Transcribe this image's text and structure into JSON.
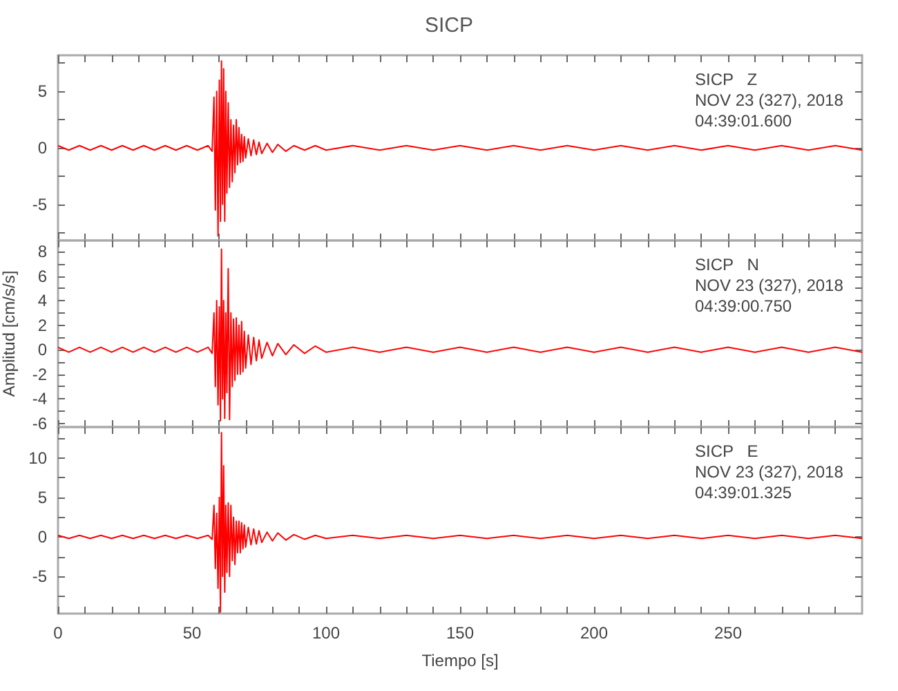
{
  "chart_data": [
    {
      "type": "line",
      "title": "SICP",
      "annotations": [
        "SICP   Z\nNOV 23 (327), 2018\n04:39:01.600"
      ],
      "tick_labels": "y",
      "grid": false,
      "xlim": [
        0,
        300
      ],
      "xticks": [
        0,
        {
          "value": 10,
          "label": null
        },
        {
          "value": 20,
          "label": null
        },
        {
          "value": 30,
          "label": null
        },
        {
          "value": 40,
          "label": null
        },
        50,
        {
          "value": 60,
          "label": null
        },
        {
          "value": 70,
          "label": null
        },
        {
          "value": 80,
          "label": null
        },
        {
          "value": 90,
          "label": null
        },
        100,
        {
          "value": 110,
          "label": null
        },
        {
          "value": 120,
          "label": null
        },
        {
          "value": 130,
          "label": null
        },
        {
          "value": 140,
          "label": null
        },
        150,
        {
          "value": 160,
          "label": null
        },
        {
          "value": 170,
          "label": null
        },
        {
          "value": 180,
          "label": null
        },
        {
          "value": 190,
          "label": null
        },
        200,
        {
          "value": 210,
          "label": null
        },
        {
          "value": 220,
          "label": null
        },
        {
          "value": 230,
          "label": null
        },
        {
          "value": 240,
          "label": null
        },
        250,
        {
          "value": 260,
          "label": null
        },
        {
          "value": 270,
          "label": null
        },
        {
          "value": 280,
          "label": null
        },
        {
          "value": 290,
          "label": null
        }
      ],
      "ylim": [
        -8.2,
        8.2
      ],
      "yticks": [
        {
          "value": -7.5,
          "label": null
        },
        -5,
        {
          "value": -2.5,
          "label": null
        },
        0,
        {
          "value": 2.5,
          "label": null
        },
        5,
        {
          "value": 7.5,
          "label": null
        }
      ],
      "x": [
        0,
        4,
        8,
        12,
        16,
        20,
        24,
        28,
        32,
        36,
        40,
        44,
        48,
        52,
        56,
        57.5,
        58.2,
        58.7,
        59.2,
        59.7,
        60.2,
        60.6,
        61,
        61.4,
        61.8,
        62.2,
        62.6,
        63,
        63.5,
        64,
        64.5,
        65,
        65.5,
        66,
        66.5,
        67,
        67.5,
        68,
        68.5,
        69,
        69.5,
        70,
        71,
        72,
        73,
        74,
        75,
        76,
        78,
        80,
        82,
        85,
        88,
        92,
        96,
        100,
        110,
        120,
        130,
        140,
        150,
        160,
        170,
        180,
        190,
        200,
        210,
        220,
        230,
        240,
        250,
        260,
        270,
        280,
        290,
        300
      ],
      "series": [
        {
          "color": "#ff0000",
          "values": [
            0.2,
            -0.2,
            0.2,
            -0.2,
            0.2,
            -0.2,
            0.2,
            -0.2,
            0.2,
            -0.2,
            0.2,
            -0.2,
            0.2,
            -0.2,
            0.2,
            -0.3,
            4.5,
            -5.5,
            5,
            -7.8,
            6,
            -6.5,
            7.7,
            -5,
            7,
            -6.5,
            5,
            -4,
            4,
            -3.5,
            2.5,
            -3,
            2,
            -2.2,
            2.5,
            -1.5,
            1.8,
            -1.3,
            1.2,
            -1.2,
            1,
            -0.9,
            0.8,
            -0.7,
            0.7,
            -0.6,
            0.5,
            -0.5,
            0.4,
            -0.4,
            0.3,
            -0.3,
            0.2,
            -0.2,
            0.2,
            -0.2,
            0.2,
            -0.2,
            0.2,
            -0.2,
            0.2,
            -0.2,
            0.2,
            -0.2,
            0.2,
            -0.2,
            0.2,
            -0.2,
            0.2,
            -0.2,
            0.2,
            -0.2,
            0.2,
            -0.2,
            0.2,
            -0.2
          ]
        }
      ]
    },
    {
      "type": "line",
      "ylabel": "Amplitud [cm/s/s]",
      "annotations": [
        "SICP   N\nNOV 23 (327), 2018\n04:39:00.750"
      ],
      "tick_labels": "y",
      "grid": false,
      "xlim": [
        0,
        300
      ],
      "xticks": [
        0,
        {
          "value": 10,
          "label": null
        },
        {
          "value": 20,
          "label": null
        },
        {
          "value": 30,
          "label": null
        },
        {
          "value": 40,
          "label": null
        },
        50,
        {
          "value": 60,
          "label": null
        },
        {
          "value": 70,
          "label": null
        },
        {
          "value": 80,
          "label": null
        },
        {
          "value": 90,
          "label": null
        },
        100,
        {
          "value": 110,
          "label": null
        },
        {
          "value": 120,
          "label": null
        },
        {
          "value": 130,
          "label": null
        },
        {
          "value": 140,
          "label": null
        },
        150,
        {
          "value": 160,
          "label": null
        },
        {
          "value": 170,
          "label": null
        },
        {
          "value": 180,
          "label": null
        },
        {
          "value": 190,
          "label": null
        },
        200,
        {
          "value": 210,
          "label": null
        },
        {
          "value": 220,
          "label": null
        },
        {
          "value": 230,
          "label": null
        },
        {
          "value": 240,
          "label": null
        },
        250,
        {
          "value": 260,
          "label": null
        },
        {
          "value": 270,
          "label": null
        },
        {
          "value": 280,
          "label": null
        },
        {
          "value": 290,
          "label": null
        }
      ],
      "ylim": [
        -6.3,
        8.9
      ],
      "yticks": [
        -6,
        {
          "value": -5,
          "label": null
        },
        -4,
        {
          "value": -3,
          "label": null
        },
        -2,
        {
          "value": -1,
          "label": null
        },
        0,
        {
          "value": 1,
          "label": null
        },
        2,
        {
          "value": 3,
          "label": null
        },
        4,
        {
          "value": 5,
          "label": null
        },
        6,
        {
          "value": 7,
          "label": null
        },
        8
      ],
      "x": [
        0,
        4,
        8,
        12,
        16,
        20,
        24,
        28,
        32,
        36,
        40,
        44,
        48,
        52,
        56,
        57.5,
        58.2,
        58.7,
        59.2,
        59.7,
        60.2,
        60.6,
        61,
        61.4,
        61.8,
        62.2,
        62.6,
        63,
        63.5,
        64,
        64.5,
        65,
        65.5,
        66,
        66.5,
        67,
        67.5,
        68,
        68.5,
        69,
        69.5,
        70,
        71,
        72,
        73,
        74,
        75,
        76,
        78,
        80,
        82,
        85,
        88,
        92,
        96,
        100,
        110,
        120,
        130,
        140,
        150,
        160,
        170,
        180,
        190,
        200,
        210,
        220,
        230,
        240,
        250,
        260,
        270,
        280,
        290,
        300
      ],
      "series": [
        {
          "color": "#ff0000",
          "values": [
            0.2,
            -0.2,
            0.2,
            -0.2,
            0.2,
            -0.2,
            0.2,
            -0.2,
            0.2,
            -0.2,
            0.2,
            -0.2,
            0.2,
            -0.2,
            0.2,
            -0.3,
            3,
            -3,
            4,
            -4.5,
            3.5,
            -5.8,
            8.2,
            -4,
            4,
            -5.6,
            3,
            -3.5,
            6.6,
            -5.7,
            3,
            -3,
            2.5,
            -2.5,
            2.6,
            -2,
            2,
            -2,
            2.3,
            -1.8,
            1.5,
            -1.5,
            1.2,
            -1.2,
            1,
            -0.9,
            0.8,
            -0.7,
            0.6,
            -0.5,
            0.5,
            -0.4,
            0.4,
            -0.3,
            0.3,
            -0.2,
            0.2,
            -0.2,
            0.2,
            -0.2,
            0.2,
            -0.2,
            0.2,
            -0.2,
            0.2,
            -0.2,
            0.2,
            -0.2,
            0.2,
            -0.2,
            0.2,
            -0.2,
            0.2,
            -0.2,
            0.2,
            -0.2
          ]
        }
      ]
    },
    {
      "type": "line",
      "xlabel": "Tiempo [s]",
      "annotations": [
        "SICP   E\nNOV 23 (327), 2018\n04:39:01.325"
      ],
      "grid": false,
      "xlim": [
        0,
        300
      ],
      "xticks": [
        0,
        {
          "value": 10,
          "label": null
        },
        {
          "value": 20,
          "label": null
        },
        {
          "value": 30,
          "label": null
        },
        {
          "value": 40,
          "label": null
        },
        50,
        {
          "value": 60,
          "label": null
        },
        {
          "value": 70,
          "label": null
        },
        {
          "value": 80,
          "label": null
        },
        {
          "value": 90,
          "label": null
        },
        100,
        {
          "value": 110,
          "label": null
        },
        {
          "value": 120,
          "label": null
        },
        {
          "value": 130,
          "label": null
        },
        {
          "value": 140,
          "label": null
        },
        150,
        {
          "value": 160,
          "label": null
        },
        {
          "value": 170,
          "label": null
        },
        {
          "value": 180,
          "label": null
        },
        {
          "value": 190,
          "label": null
        },
        200,
        {
          "value": 210,
          "label": null
        },
        {
          "value": 220,
          "label": null
        },
        {
          "value": 230,
          "label": null
        },
        {
          "value": 240,
          "label": null
        },
        250,
        {
          "value": 260,
          "label": null
        },
        {
          "value": 270,
          "label": null
        },
        {
          "value": 280,
          "label": null
        },
        {
          "value": 290,
          "label": null
        }
      ],
      "ylim": [
        -9.7,
        13.9
      ],
      "yticks": [
        {
          "value": -7.5,
          "label": null
        },
        -5,
        {
          "value": -2.5,
          "label": null
        },
        0,
        {
          "value": 2.5,
          "label": null
        },
        5,
        {
          "value": 7.5,
          "label": null
        },
        10,
        {
          "value": 12.5,
          "label": null
        }
      ],
      "x": [
        0,
        4,
        8,
        12,
        16,
        20,
        24,
        28,
        32,
        36,
        40,
        44,
        48,
        52,
        56,
        57.5,
        58.2,
        58.7,
        59.2,
        59.7,
        60.2,
        60.6,
        61,
        61.4,
        61.8,
        62.2,
        62.6,
        63,
        63.5,
        64,
        64.5,
        65,
        65.5,
        66,
        66.5,
        67,
        67.5,
        68,
        68.5,
        69,
        69.5,
        70,
        71,
        72,
        73,
        74,
        75,
        76,
        78,
        80,
        82,
        85,
        88,
        92,
        96,
        100,
        110,
        120,
        130,
        140,
        150,
        160,
        170,
        180,
        190,
        200,
        210,
        220,
        230,
        240,
        250,
        260,
        270,
        280,
        290,
        300
      ],
      "series": [
        {
          "color": "#ff0000",
          "values": [
            0.2,
            -0.2,
            0.2,
            -0.2,
            0.2,
            -0.2,
            0.2,
            -0.2,
            0.2,
            -0.2,
            0.2,
            -0.2,
            0.2,
            -0.2,
            0.2,
            -0.3,
            4,
            -4,
            3,
            -6.5,
            5,
            -9.5,
            13.2,
            -5,
            9,
            -7,
            4,
            -4.5,
            4.3,
            -5,
            4,
            -3,
            2.5,
            -3.5,
            2,
            -2,
            2,
            -2,
            1.8,
            -1.5,
            1.5,
            -1.3,
            1.2,
            -1,
            1,
            -0.9,
            0.8,
            -0.7,
            0.6,
            -0.5,
            0.5,
            -0.4,
            0.3,
            -0.3,
            0.2,
            -0.2,
            0.2,
            -0.2,
            0.2,
            -0.2,
            0.2,
            -0.2,
            0.2,
            -0.2,
            0.2,
            -0.2,
            0.2,
            -0.2,
            0.2,
            -0.2,
            0.2,
            -0.2,
            0.2,
            -0.2,
            0.2,
            -0.2
          ]
        }
      ]
    }
  ]
}
